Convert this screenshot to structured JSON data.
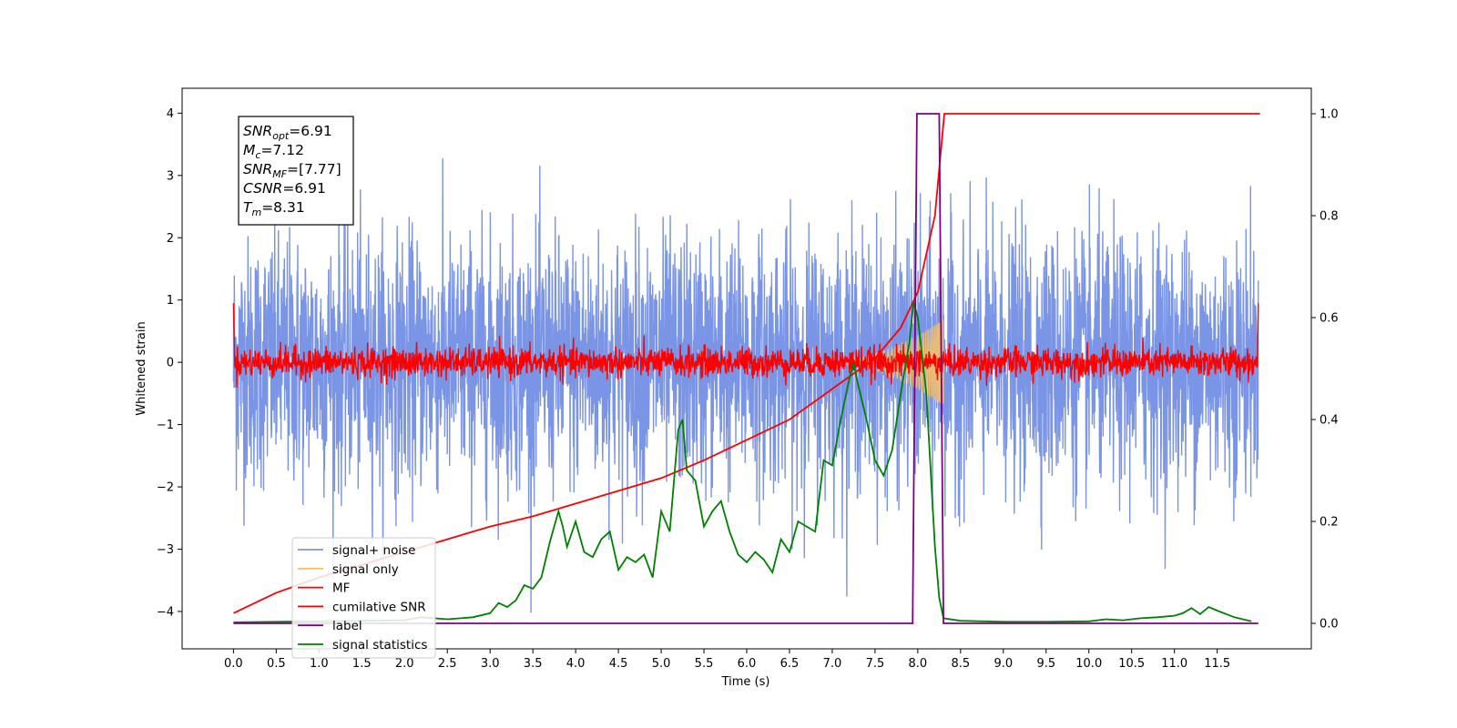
{
  "chart_data": {
    "type": "line",
    "xlabel": "Time (s)",
    "ylabel": "Whitened strain",
    "xlim": [
      -0.6,
      12.6
    ],
    "ylim": [
      -4.6,
      4.4
    ],
    "ylim_right": [
      -0.05,
      1.05
    ],
    "x_ticks": [
      "0.0",
      "0.5",
      "1.0",
      "1.5",
      "2.0",
      "2.5",
      "3.0",
      "3.5",
      "4.0",
      "4.5",
      "5.0",
      "5.5",
      "6.0",
      "6.5",
      "7.0",
      "7.5",
      "8.0",
      "8.5",
      "9.0",
      "9.5",
      "10.0",
      "10.5",
      "11.0",
      "11.5"
    ],
    "y_ticks": [
      "4",
      "3",
      "2",
      "1",
      "0",
      "−1",
      "−2",
      "−3",
      "−4"
    ],
    "y_right_ticks": [
      "1.0",
      "0.8",
      "0.6",
      "0.4",
      "0.2",
      "0.0"
    ],
    "annotations": [
      {
        "label": "SNR",
        "sub": "opt",
        "value": "=6.91"
      },
      {
        "label": "M",
        "sub": "c",
        "value": "=7.12"
      },
      {
        "label": "SNR",
        "sub": "MF",
        "value": "=[7.77]"
      },
      {
        "label": "CSNR",
        "sub": "",
        "value": "=6.91"
      },
      {
        "label": "T",
        "sub": "m",
        "value": "=8.31"
      }
    ],
    "legend_position": "lower-left",
    "series": [
      {
        "name": "signal+ noise",
        "color": "#7a94e6",
        "axis": "left",
        "kind": "noise band",
        "std": 1.0,
        "range": [
          0,
          11.98
        ]
      },
      {
        "name": "signal only",
        "color": "#f3bf6c",
        "axis": "left",
        "kind": "chirp",
        "peak_x": 8.3,
        "peak_amp": 0.7
      },
      {
        "name": "MF",
        "color": "#ff0000",
        "axis": "left",
        "kind": "noise band",
        "std": 0.12,
        "range": [
          0,
          11.98
        ]
      },
      {
        "name": "cumilative SNR",
        "color": "#ff0000",
        "axis": "right",
        "x": [
          0.0,
          0.5,
          1.0,
          1.5,
          2.0,
          2.5,
          3.0,
          3.5,
          4.0,
          4.5,
          5.0,
          5.5,
          6.0,
          6.5,
          7.0,
          7.5,
          7.8,
          8.0,
          8.2,
          8.31,
          12.0
        ],
        "values": [
          0.02,
          0.06,
          0.09,
          0.115,
          0.14,
          0.165,
          0.19,
          0.21,
          0.235,
          0.26,
          0.285,
          0.32,
          0.36,
          0.4,
          0.46,
          0.52,
          0.58,
          0.65,
          0.8,
          1.0,
          1.0
        ]
      },
      {
        "name": "label",
        "color": "#800080",
        "axis": "right",
        "x": [
          0.0,
          7.94,
          7.99,
          8.25,
          8.3,
          11.98
        ],
        "values": [
          0.0,
          0.0,
          1.0,
          1.0,
          0.0,
          0.0
        ]
      },
      {
        "name": "signal statistics",
        "color": "#008000",
        "axis": "right",
        "x": [
          0.0,
          0.5,
          1.0,
          1.5,
          2.0,
          2.2,
          2.5,
          2.8,
          3.0,
          3.1,
          3.2,
          3.3,
          3.4,
          3.5,
          3.6,
          3.7,
          3.8,
          3.85,
          3.9,
          4.0,
          4.1,
          4.2,
          4.3,
          4.4,
          4.5,
          4.6,
          4.7,
          4.8,
          4.9,
          5.0,
          5.1,
          5.2,
          5.25,
          5.3,
          5.4,
          5.5,
          5.6,
          5.7,
          5.8,
          5.9,
          6.0,
          6.1,
          6.2,
          6.3,
          6.4,
          6.5,
          6.6,
          6.7,
          6.8,
          6.9,
          7.0,
          7.1,
          7.2,
          7.25,
          7.3,
          7.4,
          7.5,
          7.6,
          7.7,
          7.8,
          7.9,
          7.95,
          8.0,
          8.1,
          8.2,
          8.25,
          8.3,
          8.5,
          9.0,
          9.5,
          10.0,
          10.2,
          10.4,
          10.6,
          10.8,
          11.0,
          11.1,
          11.2,
          11.3,
          11.4,
          11.5,
          11.7,
          11.9
        ],
        "values": [
          0.002,
          0.003,
          0.004,
          0.005,
          0.006,
          0.012,
          0.008,
          0.012,
          0.02,
          0.04,
          0.032,
          0.045,
          0.075,
          0.068,
          0.09,
          0.16,
          0.22,
          0.19,
          0.15,
          0.2,
          0.14,
          0.13,
          0.165,
          0.18,
          0.105,
          0.13,
          0.12,
          0.135,
          0.09,
          0.22,
          0.18,
          0.38,
          0.4,
          0.3,
          0.28,
          0.19,
          0.22,
          0.24,
          0.18,
          0.135,
          0.12,
          0.14,
          0.125,
          0.1,
          0.165,
          0.14,
          0.2,
          0.19,
          0.18,
          0.32,
          0.31,
          0.4,
          0.48,
          0.51,
          0.47,
          0.4,
          0.32,
          0.29,
          0.34,
          0.45,
          0.55,
          0.63,
          0.6,
          0.45,
          0.15,
          0.05,
          0.01,
          0.005,
          0.003,
          0.003,
          0.004,
          0.008,
          0.006,
          0.01,
          0.012,
          0.015,
          0.02,
          0.03,
          0.018,
          0.032,
          0.025,
          0.012,
          0.004
        ]
      }
    ]
  }
}
